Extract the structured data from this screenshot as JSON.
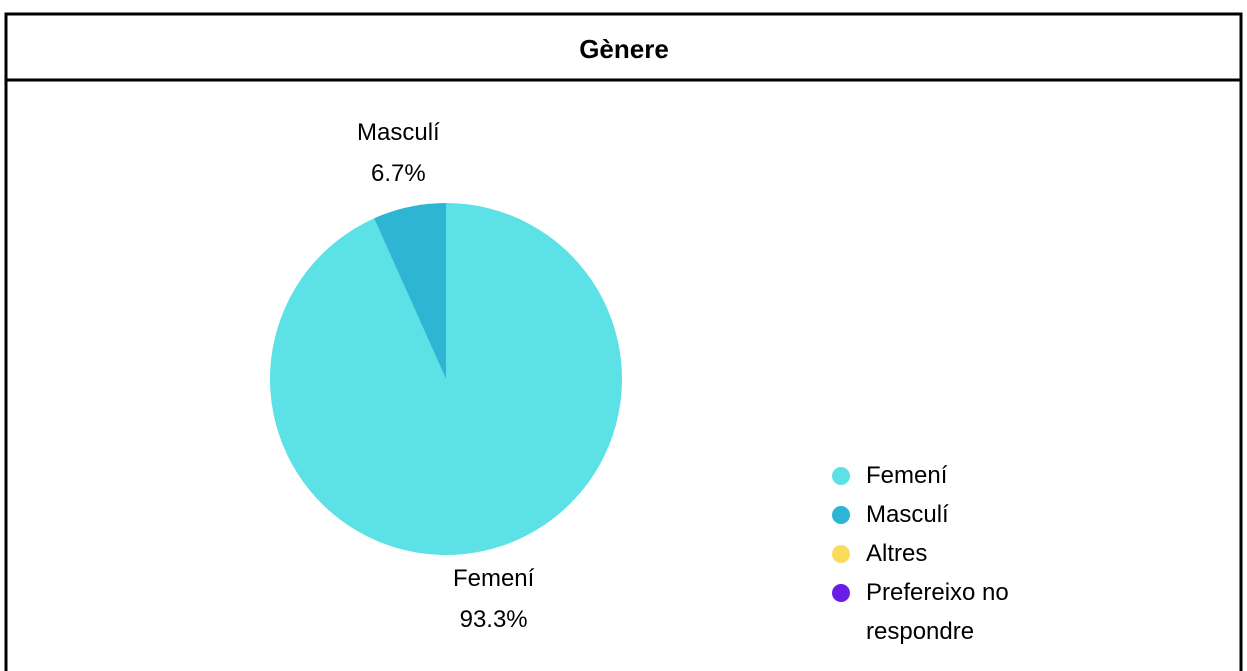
{
  "chart_data": {
    "type": "pie",
    "title": "Gènere",
    "categories": [
      "Femení",
      "Masculí",
      "Altres",
      "Prefereixo no respondre"
    ],
    "values": [
      93.3,
      6.7,
      0,
      0
    ],
    "value_labels": [
      "93.3%",
      "6.7%",
      null,
      null
    ],
    "colors": [
      "#5ce1e6",
      "#2fb5d4",
      "#fbdc5a",
      "#6a1de8"
    ],
    "legend": "right"
  }
}
